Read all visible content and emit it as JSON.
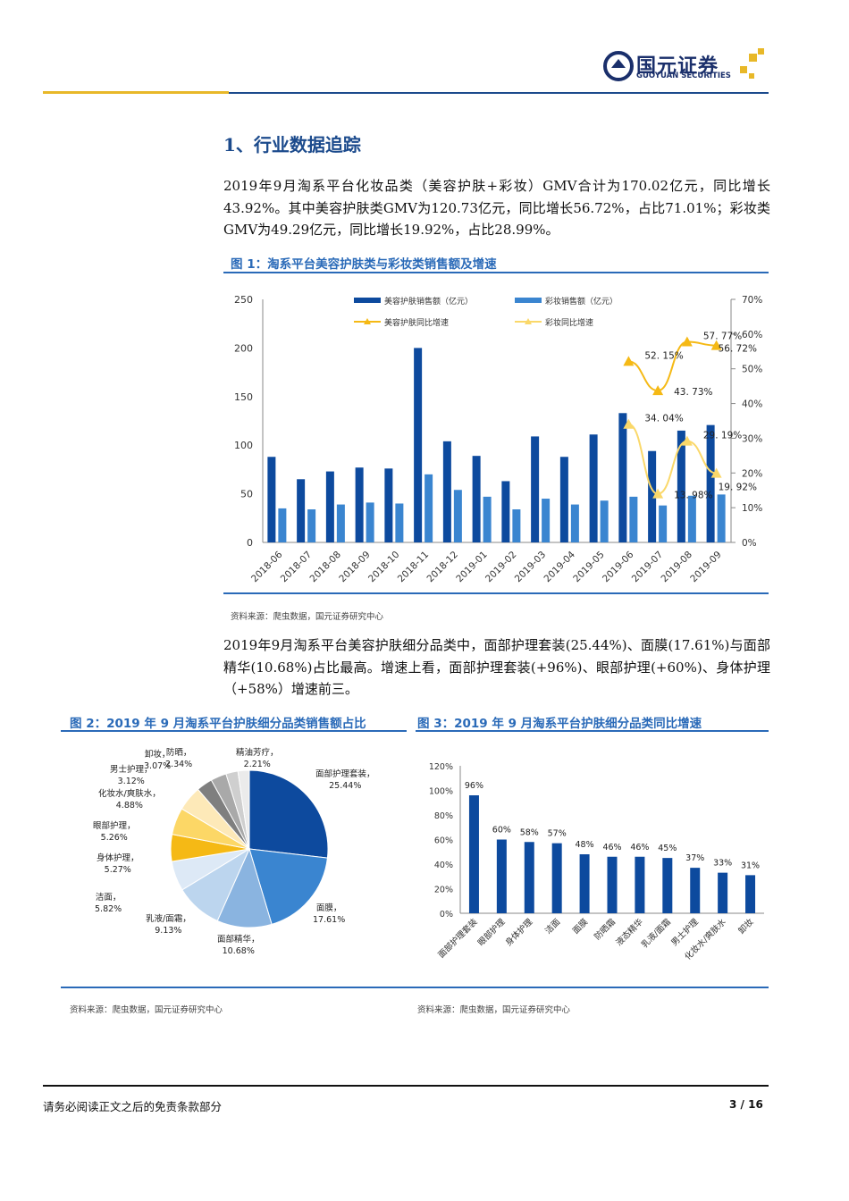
{
  "header": {
    "logo_cn": "国元证券",
    "logo_en": "GUOYUAN SECURITIES"
  },
  "section_title": "1、行业数据追踪",
  "para1": "2019年9月淘系平台化妆品类（美容护肤+彩妆）GMV合计为170.02亿元，同比增长43.92%。其中美容护肤类GMV为120.73亿元，同比增长56.72%，占比71.01%；彩妆类GMV为49.29亿元，同比增长19.92%，占比28.99%。",
  "fig1": {
    "title": "图 1：淘系平台美容护肤类与彩妆类销售额及增速",
    "source": "资料来源：爬虫数据，国元证券研究中心"
  },
  "para2": "2019年9月淘系平台美容护肤细分品类中，面部护理套装(25.44%)、面膜(17.61%)与面部精华(10.68%)占比最高。增速上看，面部护理套装(+96%)、眼部护理(+60%)、身体护理（+58%）增速前三。",
  "fig2": {
    "title": "图 2：2019 年 9 月淘系平台护肤细分品类销售额占比",
    "source": "资料来源：爬虫数据，国元证券研究中心"
  },
  "fig3": {
    "title": "图 3：2019 年 9 月淘系平台护肤细分品类同比增速",
    "source": "资料来源：爬虫数据，国元证券研究中心"
  },
  "footer": {
    "disclaimer": "请务必阅读正文之后的免责条款部分",
    "page": "3 / 16"
  },
  "colors": {
    "brand_blue": "#1b4a8c",
    "gold": "#e8b828",
    "dark_bar": "#0d4a9e",
    "light_bar": "#3a85d0",
    "line1": "#f5b915",
    "line2": "#fad86a"
  },
  "chart_data": [
    {
      "type": "bar+line",
      "categories": [
        "2018-06",
        "2018-07",
        "2018-08",
        "2018-09",
        "2018-10",
        "2018-11",
        "2018-12",
        "2019-01",
        "2019-02",
        "2019-03",
        "2019-04",
        "2019-05",
        "2019-06",
        "2019-07",
        "2019-08",
        "2019-09"
      ],
      "ylim": [
        0,
        250
      ],
      "yticks": [
        "0",
        "50",
        "100",
        "150",
        "200",
        "250"
      ],
      "y2lim": [
        0,
        70
      ],
      "y2ticks": [
        "0%",
        "10%",
        "20%",
        "30%",
        "40%",
        "50%",
        "60%",
        "70%"
      ],
      "series": [
        {
          "name": "美容护肤销售额（亿元）",
          "type": "bar",
          "values": [
            88,
            65,
            73,
            77,
            76,
            200,
            104,
            89,
            63,
            109,
            88,
            111,
            133,
            94,
            115,
            120.73
          ]
        },
        {
          "name": "彩妆销售额（亿元）",
          "type": "bar",
          "values": [
            35,
            34,
            39,
            41,
            40,
            70,
            54,
            47,
            34,
            45,
            39,
            43,
            47,
            38,
            48,
            49.29
          ]
        },
        {
          "name": "美容护肤同比增速",
          "type": "line",
          "axis": "right",
          "values": [
            null,
            null,
            null,
            null,
            null,
            null,
            null,
            null,
            null,
            null,
            null,
            null,
            52.15,
            43.73,
            57.77,
            56.72
          ],
          "labels": [
            "52. 15%",
            "43. 73%",
            "57. 77%",
            "56. 72%"
          ]
        },
        {
          "name": "彩妆同比增速",
          "type": "line",
          "axis": "right",
          "values": [
            null,
            null,
            null,
            null,
            null,
            null,
            null,
            null,
            null,
            null,
            null,
            null,
            34.04,
            13.98,
            29.19,
            19.92
          ],
          "labels": [
            "34. 04%",
            "13. 98%",
            "29. 19%",
            "19. 92%"
          ]
        }
      ],
      "legend": "top"
    },
    {
      "type": "pie",
      "slices": [
        {
          "label": "面部护理套装，25.44%",
          "value": 25.44,
          "color": "#0d4a9e"
        },
        {
          "label": "面膜，17.61%",
          "value": 17.61,
          "color": "#3a85d0"
        },
        {
          "label": "面部精华，10.68%",
          "value": 10.68,
          "color": "#8ab4e0"
        },
        {
          "label": "乳液/面霜，9.13%",
          "value": 9.13,
          "color": "#bcd5ee"
        },
        {
          "label": "洁面，5.82%",
          "value": 5.82,
          "color": "#dde9f6"
        },
        {
          "label": "身体护理，5.27%",
          "value": 5.27,
          "color": "#f5b915"
        },
        {
          "label": "眼部护理，5.26%",
          "value": 5.26,
          "color": "#fcd766"
        },
        {
          "label": "化妆水/爽肤水，4.88%",
          "value": 4.88,
          "color": "#fde9b8"
        },
        {
          "label": "男士护理，3.12%",
          "value": 3.12,
          "color": "#7f7f7f"
        },
        {
          "label": "卸妆，3.07%",
          "value": 3.07,
          "color": "#a9a9a9"
        },
        {
          "label": "防晒，2.34%",
          "value": 2.34,
          "color": "#cfcfcf"
        },
        {
          "label": "精油芳疗，2.21%",
          "value": 2.21,
          "color": "#ebebeb"
        }
      ]
    },
    {
      "type": "bar",
      "categories": [
        "面部护理套装",
        "眼部护理",
        "身体护理",
        "洁面",
        "面膜",
        "防晒霜",
        "液态精华",
        "乳液/面霜",
        "男士护理",
        "化妆水/爽肤水",
        "卸妆"
      ],
      "values": [
        96,
        60,
        58,
        57,
        48,
        46,
        46,
        45,
        37,
        33,
        31
      ],
      "data_labels": [
        "96%",
        "60%",
        "58%",
        "57%",
        "48%",
        "46%",
        "46%",
        "45%",
        "37%",
        "33%",
        "31%"
      ],
      "ylim": [
        0,
        120
      ],
      "yticks": [
        "0%",
        "20%",
        "40%",
        "60%",
        "80%",
        "100%",
        "120%"
      ]
    }
  ]
}
